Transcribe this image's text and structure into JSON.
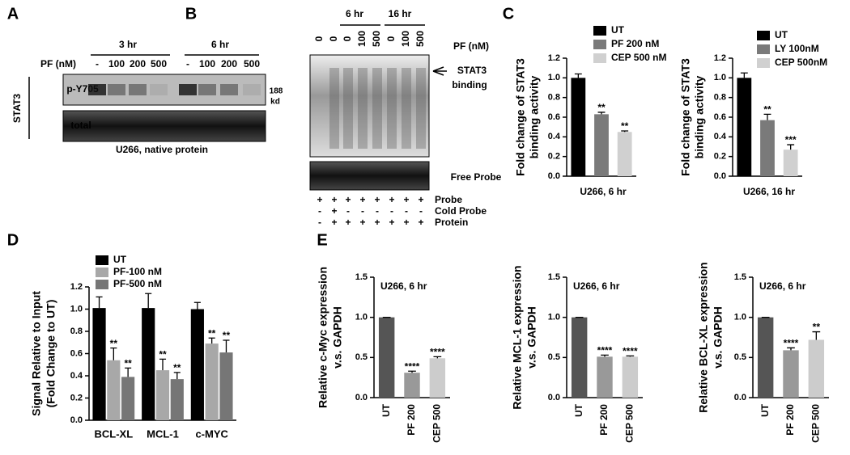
{
  "panel_labels": [
    "A",
    "B",
    "C",
    "D",
    "E"
  ],
  "blot_a": {
    "time_labels": [
      "3 hr",
      "6 hr"
    ],
    "dose_label": "PF (nM)",
    "lanes": [
      "-",
      "100",
      "200",
      "500",
      "-",
      "100",
      "200",
      "500"
    ],
    "rows": [
      "p-Y705",
      "total"
    ],
    "protein": "STAT3",
    "size": [
      "188",
      "kd"
    ],
    "caption": "U266, native protein"
  },
  "blot_b": {
    "time_labels": [
      "6 hr",
      "16 hr"
    ],
    "dose_label": "PF (nM)",
    "lanes": [
      "0",
      "0",
      "0",
      "100",
      "500",
      "0",
      "100",
      "500"
    ],
    "band_label": [
      "STAT3",
      "binding"
    ],
    "free_probe": "Free Probe",
    "conditions": [
      {
        "name": "Probe",
        "marks": [
          "+",
          "+",
          "+",
          "+",
          "+",
          "+",
          "+",
          "+"
        ]
      },
      {
        "name": "Cold Probe",
        "marks": [
          "-",
          "+",
          "-",
          "-",
          "-",
          "-",
          "-",
          "-"
        ]
      },
      {
        "name": "Protein",
        "marks": [
          "-",
          "+",
          "+",
          "+",
          "+",
          "+",
          "+",
          "+"
        ]
      }
    ]
  },
  "chart_data": [
    {
      "type": "bar",
      "y_label": [
        "Fold change of  STAT3",
        "binding activity"
      ],
      "x_label": "U266, 6 hr",
      "categories": [
        "UT",
        "PF 200 nM",
        "CEP 500 nM"
      ],
      "colors": [
        "#000000",
        "#7a7a7a",
        "#d0d0d0"
      ],
      "values": [
        1.0,
        0.63,
        0.45
      ],
      "errors": [
        0.04,
        0.02,
        0.01
      ],
      "significance": [
        null,
        "**",
        "**"
      ],
      "ylim": [
        0,
        1.2
      ],
      "yticks": [
        {
          "value": 0,
          "label": "0.0"
        },
        0.2,
        0.4,
        0.6,
        0.8,
        {
          "value": 1,
          "label": "1.0"
        },
        1.2
      ],
      "legend": "top-right"
    },
    {
      "type": "bar",
      "y_label": [
        "Fold change of  STAT3",
        "binding activity"
      ],
      "x_label": "U266, 16 hr",
      "categories": [
        "UT",
        "LY 100nM",
        "CEP 500nM"
      ],
      "colors": [
        "#000000",
        "#7a7a7a",
        "#d0d0d0"
      ],
      "values": [
        1.0,
        0.57,
        0.27
      ],
      "errors": [
        0.05,
        0.06,
        0.05
      ],
      "significance": [
        null,
        "**",
        "***"
      ],
      "ylim": [
        0,
        1.2
      ],
      "yticks": [
        {
          "value": 0,
          "label": "0.0"
        },
        0.2,
        0.4,
        0.6,
        0.8,
        {
          "value": 1,
          "label": "1.0"
        },
        1.2
      ],
      "legend": "top-right"
    },
    {
      "type": "grouped-bar",
      "y_label": [
        "Signal Relative to Input",
        "(Fold Change to UT)"
      ],
      "categories": [
        "BCL-XL",
        "MCL-1",
        "c-MYC"
      ],
      "series": [
        {
          "name": "UT",
          "color": "#000000",
          "values": [
            1.01,
            1.01,
            1.0
          ],
          "errors": [
            0.1,
            0.13,
            0.06
          ],
          "significance": [
            null,
            null,
            null
          ]
        },
        {
          "name": "PF-100 nM",
          "color": "#a8a8a8",
          "values": [
            0.54,
            0.45,
            0.69
          ],
          "errors": [
            0.11,
            0.1,
            0.05
          ],
          "significance": [
            "**",
            "**",
            "**"
          ]
        },
        {
          "name": "PF-500 nM",
          "color": "#767676",
          "values": [
            0.39,
            0.37,
            0.61
          ],
          "errors": [
            0.08,
            0.06,
            0.11
          ],
          "significance": [
            "**",
            "**",
            "**"
          ]
        }
      ],
      "ylim": [
        0,
        1.2
      ],
      "yticks": [
        {
          "value": 0,
          "label": "0.0"
        },
        0.2,
        0.4,
        0.6,
        0.8,
        {
          "value": 1,
          "label": "1.0"
        },
        1.2
      ],
      "legend": "top-left"
    },
    {
      "type": "bar",
      "y_label": [
        "Relative c-Myc expression",
        "v.s. GAPDH"
      ],
      "annotation": "U266, 6 hr",
      "categories": [
        "UT",
        "PF 200",
        "CEP 500"
      ],
      "colors": [
        "#555555",
        "#999999",
        "#cccccc"
      ],
      "values": [
        1.0,
        0.31,
        0.49
      ],
      "errors": [
        0,
        0.02,
        0.02
      ],
      "significance": [
        null,
        "****",
        "****"
      ],
      "ylim": [
        0,
        1.5
      ],
      "yticks": [
        {
          "value": 0,
          "label": "0.0"
        },
        0.5,
        {
          "value": 1,
          "label": "1.0"
        },
        1.5
      ]
    },
    {
      "type": "bar",
      "y_label": [
        "Relative MCL-1 expression",
        "v.s. GAPDH"
      ],
      "annotation": "U266, 6 hr",
      "categories": [
        "UT",
        "PF 200",
        "CEP 500"
      ],
      "colors": [
        "#555555",
        "#999999",
        "#cccccc"
      ],
      "values": [
        1.0,
        0.51,
        0.51
      ],
      "errors": [
        0,
        0.02,
        0.01
      ],
      "significance": [
        null,
        "****",
        "****"
      ],
      "ylim": [
        0,
        1.5
      ],
      "yticks": [
        {
          "value": 0,
          "label": "0.0"
        },
        0.5,
        {
          "value": 1,
          "label": "1.0"
        },
        1.5
      ]
    },
    {
      "type": "bar",
      "y_label": [
        "Relative BCL-XL expression",
        "v.s. GAPDH"
      ],
      "annotation": "U266, 6 hr",
      "categories": [
        "UT",
        "PF 200",
        "CEP 500"
      ],
      "colors": [
        "#555555",
        "#999999",
        "#cccccc"
      ],
      "values": [
        1.0,
        0.59,
        0.72
      ],
      "errors": [
        0,
        0.03,
        0.1
      ],
      "significance": [
        null,
        "****",
        "**"
      ],
      "ylim": [
        0,
        1.5
      ],
      "yticks": [
        {
          "value": 0,
          "label": "0.0"
        },
        0.5,
        {
          "value": 1,
          "label": "1.0"
        },
        1.5
      ]
    }
  ]
}
